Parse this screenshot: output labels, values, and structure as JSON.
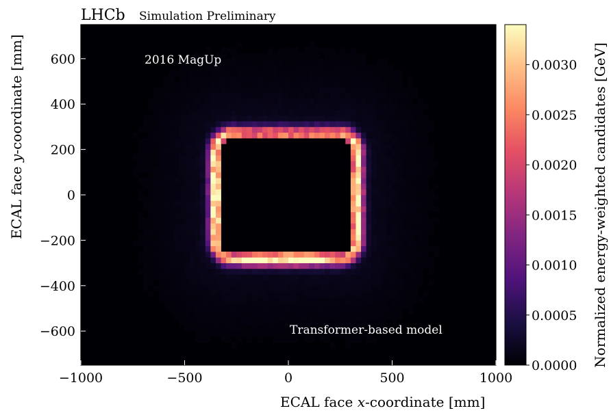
{
  "chart_data": {
    "type": "heatmap",
    "header": {
      "experiment": "LHCb",
      "status": "Simulation Preliminary"
    },
    "annotations": [
      "2016 MagUp",
      "Transformer-based model"
    ],
    "xlabel_parts": [
      "ECAL face ",
      "x",
      "-coordinate [mm]"
    ],
    "ylabel_parts": [
      "ECAL face ",
      "y",
      "-coordinate [mm]"
    ],
    "colorbar_label": "Normalized energy-weighted candidates [GeV]",
    "xlim": [
      -1000,
      1000
    ],
    "ylim": [
      -750,
      750
    ],
    "x_ticks": [
      -1000,
      -500,
      0,
      500,
      1000
    ],
    "x_tick_labels": [
      "−1000",
      "−500",
      "0",
      "500",
      "1000"
    ],
    "y_ticks": [
      -600,
      -400,
      -200,
      0,
      200,
      400,
      600
    ],
    "y_tick_labels": [
      "−600",
      "−400",
      "−200",
      "0",
      "200",
      "400",
      "600"
    ],
    "colorbar_range": [
      0,
      0.0034
    ],
    "colorbar_ticks": [
      0,
      0.0005,
      0.001,
      0.0015,
      0.002,
      0.0025,
      0.003
    ],
    "colorbar_tick_labels": [
      "0.0000",
      "0.0005",
      "0.0010",
      "0.0015",
      "0.0020",
      "0.0025",
      "0.0030"
    ],
    "colormap": "magma",
    "ring": {
      "inner_x": [
        -330,
        310
      ],
      "inner_y": [
        -260,
        250
      ],
      "outer_x": [
        -390,
        370
      ],
      "outer_y": [
        -320,
        310
      ],
      "peak_value": 0.0034,
      "peak_locations": [
        "left edge near y = 0",
        "bottom edge near y = -290"
      ]
    },
    "inner_hole_value": 0.0
  }
}
